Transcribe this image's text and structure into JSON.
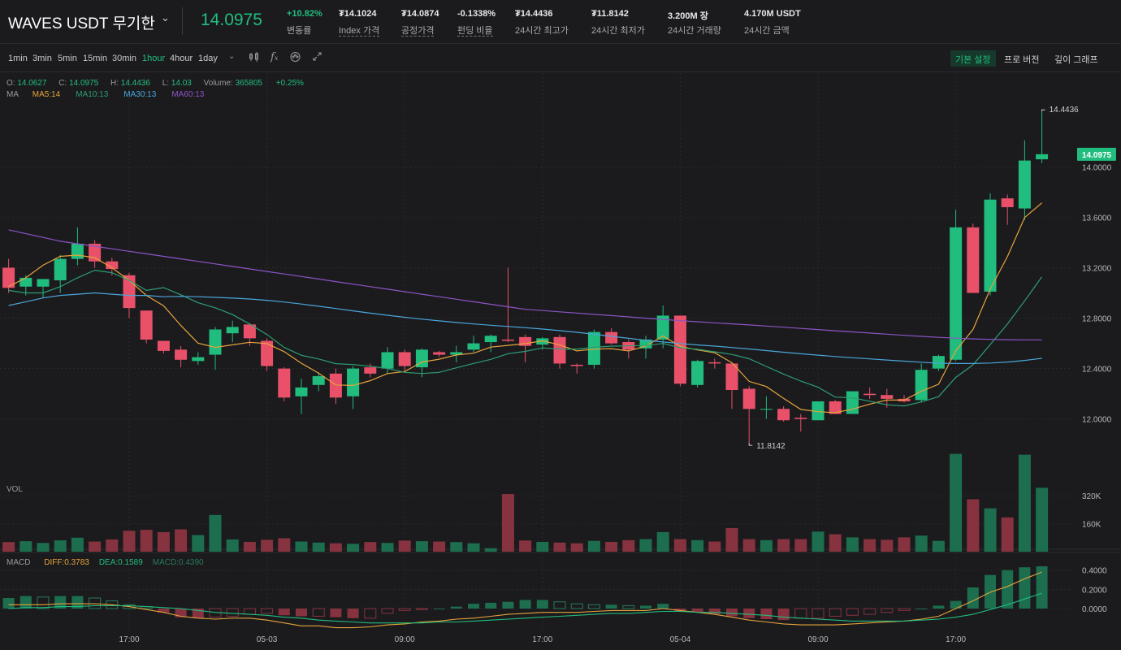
{
  "header": {
    "symbol": "WAVES USDT 무기한",
    "last_price": "14.0975",
    "stats": [
      {
        "value": "+10.82%",
        "label": "변동률",
        "dotted": false,
        "up": true
      },
      {
        "value": "₮14.1024",
        "label": "Index 가격",
        "dotted": true,
        "up": false
      },
      {
        "value": "₮14.0874",
        "label": "공정가격",
        "dotted": true,
        "up": false
      },
      {
        "value": "-0.1338%",
        "label": "펀딩 비율",
        "dotted": true,
        "up": false
      },
      {
        "value": "₮14.4436",
        "label": "24시간 최고가",
        "dotted": false,
        "up": false
      },
      {
        "value": "₮11.8142",
        "label": "24시간 최저가",
        "dotted": false,
        "up": false
      },
      {
        "value": "3.200M 장",
        "label": "24시간 거래량",
        "dotted": false,
        "up": false
      },
      {
        "value": "4.170M USDT",
        "label": "24시간 금액",
        "dotted": false,
        "up": false
      }
    ]
  },
  "toolbar": {
    "intervals": [
      "1min",
      "3min",
      "5min",
      "15min",
      "30min",
      "1hour",
      "4hour",
      "1day"
    ],
    "active_interval": "1hour",
    "views": [
      "기본 설정",
      "프로 버전",
      "깊이 그래프"
    ],
    "active_view": "기본 설정"
  },
  "legend": {
    "o_label": "O:",
    "o": "14.0627",
    "c_label": "C:",
    "c": "14.0975",
    "h_label": "H:",
    "h": "14.4436",
    "l_label": "L:",
    "l": "14.03",
    "vol_label": "Volume:",
    "vol": "365805",
    "chg": "+0.25%",
    "ma_title": "MA",
    "ma": [
      {
        "name": "MA5:14",
        "color": "#e6a33b"
      },
      {
        "name": "MA10:13",
        "color": "#2d9d72"
      },
      {
        "name": "MA30:13",
        "color": "#49a6d9"
      },
      {
        "name": "MA60:13",
        "color": "#8c54c4"
      }
    ],
    "vol_title": "VOL",
    "macd_title": "MACD",
    "macd": [
      {
        "name": "DIFF:0.3783",
        "color": "#e6a33b"
      },
      {
        "name": "DEA:0.1589",
        "color": "#21bd7e"
      },
      {
        "name": "MACD:0.4390",
        "color": "#2a7a58"
      }
    ]
  },
  "colors": {
    "up": "#21bd7e",
    "down": "#e9516a",
    "bg": "#1b1b1e",
    "grid": "#2a2a2e"
  },
  "chart_data": {
    "type": "candlestick",
    "price_axis": {
      "ticks": [
        12.0,
        12.4,
        12.8,
        13.2,
        13.6,
        14.0
      ],
      "ylim": [
        11.65,
        14.55
      ]
    },
    "high_marker": "14.4436",
    "low_marker": "11.8142",
    "last_price_tag": "14.0975",
    "x_labels": [
      {
        "index": 7,
        "label": "17:00"
      },
      {
        "index": 15,
        "label": "05-03"
      },
      {
        "index": 23,
        "label": "09:00"
      },
      {
        "index": 31,
        "label": "17:00"
      },
      {
        "index": 39,
        "label": "05-04"
      },
      {
        "index": 47,
        "label": "09:00"
      },
      {
        "index": 55,
        "label": "17:00"
      }
    ],
    "ohlc": [
      [
        13.2,
        13.27,
        13.0,
        13.04
      ],
      [
        13.05,
        13.14,
        12.98,
        13.12
      ],
      [
        13.05,
        13.1,
        12.96,
        13.11
      ],
      [
        13.1,
        13.3,
        13.0,
        13.27
      ],
      [
        13.27,
        13.52,
        13.22,
        13.39
      ],
      [
        13.39,
        13.42,
        13.2,
        13.25
      ],
      [
        13.25,
        13.28,
        13.14,
        13.19
      ],
      [
        13.14,
        13.16,
        12.8,
        12.88
      ],
      [
        12.86,
        12.86,
        12.6,
        12.63
      ],
      [
        12.62,
        12.62,
        12.52,
        12.54
      ],
      [
        12.55,
        12.58,
        12.41,
        12.47
      ],
      [
        12.46,
        12.53,
        12.43,
        12.49
      ],
      [
        12.51,
        12.73,
        12.39,
        12.71
      ],
      [
        12.68,
        12.78,
        12.61,
        12.73
      ],
      [
        12.75,
        12.76,
        12.58,
        12.64
      ],
      [
        12.62,
        12.64,
        12.38,
        12.42
      ],
      [
        12.4,
        12.41,
        12.14,
        12.17
      ],
      [
        12.18,
        12.32,
        12.04,
        12.25
      ],
      [
        12.27,
        12.37,
        12.22,
        12.34
      ],
      [
        12.36,
        12.4,
        12.12,
        12.17
      ],
      [
        12.18,
        12.42,
        12.08,
        12.4
      ],
      [
        12.41,
        12.44,
        12.33,
        12.36
      ],
      [
        12.4,
        12.57,
        12.36,
        12.53
      ],
      [
        12.53,
        12.55,
        12.38,
        12.42
      ],
      [
        12.41,
        12.56,
        12.33,
        12.55
      ],
      [
        12.53,
        12.54,
        12.49,
        12.51
      ],
      [
        12.51,
        12.58,
        12.45,
        12.53
      ],
      [
        12.55,
        12.66,
        12.53,
        12.6
      ],
      [
        12.61,
        12.67,
        12.53,
        12.66
      ],
      [
        12.63,
        13.2,
        12.61,
        12.62
      ],
      [
        12.65,
        12.67,
        12.45,
        12.58
      ],
      [
        12.59,
        12.65,
        12.55,
        12.64
      ],
      [
        12.65,
        12.67,
        12.4,
        12.44
      ],
      [
        12.43,
        12.44,
        12.36,
        12.42
      ],
      [
        12.43,
        12.71,
        12.4,
        12.69
      ],
      [
        12.69,
        12.72,
        12.59,
        12.6
      ],
      [
        12.61,
        12.63,
        12.48,
        12.55
      ],
      [
        12.56,
        12.66,
        12.48,
        12.63
      ],
      [
        12.63,
        12.9,
        12.56,
        12.82
      ],
      [
        12.82,
        12.82,
        12.26,
        12.28
      ],
      [
        12.27,
        12.47,
        12.25,
        12.46
      ],
      [
        12.45,
        12.48,
        12.4,
        12.44
      ],
      [
        12.44,
        12.45,
        12.08,
        12.23
      ],
      [
        12.24,
        12.26,
        11.81,
        12.08
      ],
      [
        12.08,
        12.18,
        12.0,
        12.08
      ],
      [
        12.08,
        12.1,
        11.98,
        11.99
      ],
      [
        12.01,
        12.04,
        11.9,
        12.0
      ],
      [
        11.99,
        12.14,
        11.99,
        12.14
      ],
      [
        12.14,
        12.15,
        12.05,
        12.04
      ],
      [
        12.04,
        12.22,
        12.04,
        12.22
      ],
      [
        12.2,
        12.25,
        12.16,
        12.19
      ],
      [
        12.19,
        12.24,
        12.09,
        12.16
      ],
      [
        12.16,
        12.19,
        12.13,
        12.14
      ],
      [
        12.15,
        12.44,
        12.13,
        12.39
      ],
      [
        12.4,
        12.51,
        12.38,
        12.5
      ],
      [
        12.47,
        13.66,
        12.46,
        13.52
      ],
      [
        13.52,
        13.55,
        13.0,
        13.0
      ],
      [
        13.01,
        13.79,
        12.98,
        13.74
      ],
      [
        13.75,
        13.78,
        13.54,
        13.68
      ],
      [
        13.67,
        14.21,
        13.58,
        14.05
      ],
      [
        14.06,
        14.44,
        14.03,
        14.1
      ]
    ],
    "volume_axis": {
      "ticks": [
        "320K",
        "160K"
      ],
      "max": 400000
    },
    "volume": [
      55000,
      60000,
      50000,
      65000,
      80000,
      58000,
      70000,
      120000,
      125000,
      112000,
      128000,
      95000,
      210000,
      70000,
      56000,
      68000,
      77000,
      58000,
      52000,
      48000,
      45000,
      55000,
      50000,
      64000,
      60000,
      58000,
      55000,
      48000,
      20000,
      330000,
      64000,
      56000,
      52000,
      48000,
      62000,
      56000,
      66000,
      72000,
      112000,
      72000,
      66000,
      58000,
      135000,
      72000,
      66000,
      72000,
      72000,
      115000,
      100000,
      82000,
      72000,
      68000,
      82000,
      92000,
      62000,
      560000,
      300000,
      248000,
      196000,
      555000,
      365805
    ],
    "macd_axis": {
      "ticks": [
        "0.4000",
        "0.2000",
        "0.0000"
      ],
      "ylim": [
        -0.22,
        0.44
      ]
    },
    "macd_hist": [
      0.11,
      0.13,
      0.12,
      0.13,
      0.13,
      0.11,
      0.08,
      0.04,
      0.02,
      -0.04,
      -0.09,
      -0.1,
      -0.09,
      -0.08,
      -0.06,
      -0.05,
      -0.07,
      -0.08,
      -0.08,
      -0.09,
      -0.1,
      -0.1,
      -0.05,
      -0.02,
      -0.01,
      0.0,
      0.02,
      0.05,
      0.06,
      0.07,
      0.09,
      0.09,
      0.07,
      0.05,
      0.04,
      0.04,
      0.03,
      0.03,
      0.05,
      -0.03,
      -0.04,
      -0.06,
      -0.08,
      -0.1,
      -0.11,
      -0.12,
      -0.1,
      -0.1,
      -0.08,
      -0.07,
      -0.06,
      -0.04,
      -0.02,
      0.0,
      0.03,
      0.08,
      0.22,
      0.35,
      0.4,
      0.43,
      0.44
    ],
    "diff": [
      0.04,
      0.04,
      0.04,
      0.05,
      0.05,
      0.05,
      0.04,
      0.02,
      -0.01,
      -0.04,
      -0.08,
      -0.1,
      -0.11,
      -0.1,
      -0.1,
      -0.12,
      -0.15,
      -0.18,
      -0.18,
      -0.2,
      -0.2,
      -0.19,
      -0.17,
      -0.16,
      -0.14,
      -0.13,
      -0.11,
      -0.1,
      -0.08,
      -0.06,
      -0.05,
      -0.04,
      -0.04,
      -0.04,
      -0.03,
      -0.02,
      -0.02,
      -0.02,
      0.0,
      -0.02,
      -0.04,
      -0.06,
      -0.09,
      -0.12,
      -0.14,
      -0.16,
      -0.17,
      -0.17,
      -0.17,
      -0.16,
      -0.15,
      -0.14,
      -0.13,
      -0.11,
      -0.08,
      0.0,
      0.08,
      0.17,
      0.23,
      0.31,
      0.38
    ],
    "dea": [
      0.0,
      0.01,
      0.01,
      0.02,
      0.02,
      0.03,
      0.03,
      0.03,
      0.02,
      0.01,
      0.0,
      -0.02,
      -0.04,
      -0.05,
      -0.06,
      -0.07,
      -0.09,
      -0.1,
      -0.12,
      -0.13,
      -0.14,
      -0.15,
      -0.15,
      -0.15,
      -0.15,
      -0.14,
      -0.14,
      -0.13,
      -0.12,
      -0.11,
      -0.1,
      -0.09,
      -0.08,
      -0.07,
      -0.06,
      -0.05,
      -0.05,
      -0.04,
      -0.03,
      -0.03,
      -0.04,
      -0.04,
      -0.05,
      -0.06,
      -0.07,
      -0.09,
      -0.1,
      -0.11,
      -0.12,
      -0.13,
      -0.13,
      -0.13,
      -0.13,
      -0.12,
      -0.11,
      -0.09,
      -0.06,
      -0.01,
      0.04,
      0.1,
      0.16
    ],
    "ma_series": {
      "ma5_start": [
        13.05,
        13.12,
        13.22,
        13.29,
        13.3,
        13.28,
        13.2,
        13.1,
        12.98
      ],
      "ma10_start": [
        13.02,
        13.0,
        13.0,
        13.05,
        13.12,
        13.18,
        13.16,
        13.1,
        13.02
      ],
      "ma30_start": [
        12.9,
        12.93,
        12.96,
        12.98,
        12.99,
        13.0,
        12.99,
        12.98,
        12.98,
        12.97
      ],
      "ma60_start": [
        13.5,
        13.47,
        13.44,
        13.41,
        13.39,
        13.37,
        13.35,
        13.33,
        13.31,
        13.29,
        13.27,
        13.25,
        13.23,
        13.21,
        13.19,
        13.17,
        13.15,
        13.13,
        13.11,
        13.09,
        13.07,
        13.05,
        13.03,
        13.01,
        12.99,
        12.97,
        12.95,
        12.93,
        12.91,
        12.89,
        12.87,
        12.86,
        12.85,
        12.84,
        12.83,
        12.82,
        12.81,
        12.8,
        12.79,
        12.78
      ]
    }
  }
}
